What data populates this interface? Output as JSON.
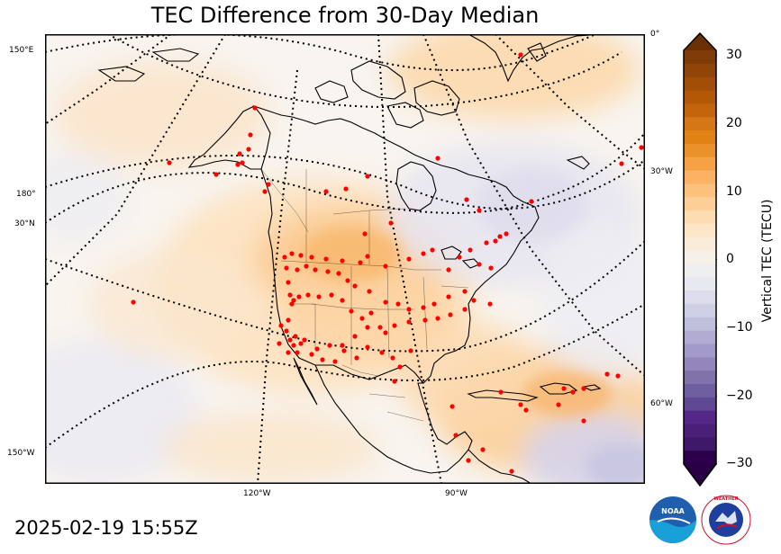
{
  "title": "TEC Difference from 30-Day Median",
  "timestamp": "2025-02-19 15:55Z",
  "map": {
    "projection": "polar stereographic (North America)",
    "grid_labels": {
      "left": [
        "150°E",
        "180°",
        "30°N",
        "150°W"
      ],
      "right": [
        "0°",
        "30°W",
        "60°W"
      ],
      "bottom": [
        "120°W",
        "90°W"
      ]
    },
    "station_marker_color": "#ff0000",
    "gridline_style": "dotted black"
  },
  "colorbar": {
    "label": "Vertical TEC (TECU)",
    "ticks": [
      "30",
      "20",
      "10",
      "0",
      "−10",
      "−20",
      "−30"
    ],
    "range": [
      -30,
      30
    ],
    "colormap": "PuOr (purple negative, orange positive)",
    "extend": "both",
    "colors_high_to_low": [
      "#7f3b08",
      "#8f4408",
      "#a14e09",
      "#b35806",
      "#c4640d",
      "#d57617",
      "#e08214",
      "#ea912a",
      "#f4a244",
      "#fbb264",
      "#fdc17e",
      "#fdcf98",
      "#fddcb2",
      "#fde6c8",
      "#f9ecd9",
      "#f5f0e8",
      "#f0efef",
      "#e8e8f0",
      "#dcdcec",
      "#cfd0e5",
      "#c0c0dd",
      "#b2abd2",
      "#a29ac9",
      "#9386bd",
      "#8073ac",
      "#6f5ea0",
      "#5f4893",
      "#542788",
      "#4a1f78",
      "#3f1869",
      "#2d004b"
    ]
  },
  "logos": [
    "NOAA",
    "NATIONAL WEATHER SERVICE"
  ]
}
